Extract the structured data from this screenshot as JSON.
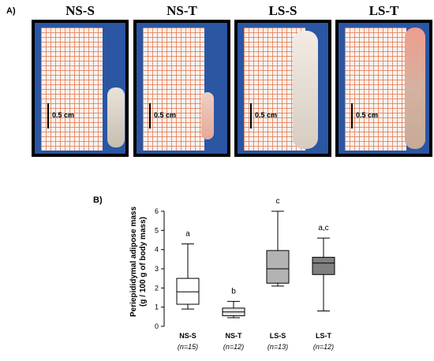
{
  "panel_a": {
    "label": "A)",
    "photos": [
      {
        "title": "NS-S",
        "scale": "0.5 cm"
      },
      {
        "title": "NS-T",
        "scale": "0.5 cm"
      },
      {
        "title": "LS-S",
        "scale": "0.5 cm"
      },
      {
        "title": "LS-T",
        "scale": "0.5 cm"
      }
    ]
  },
  "panel_b": {
    "label": "B)"
  },
  "chart_data": {
    "type": "boxplot",
    "ylabel_line1": "Periepididymal adipose mass",
    "ylabel_line2": "(g / 100 g of body mass)",
    "ylim": [
      0,
      6
    ],
    "yticks": [
      "0",
      "1",
      "2",
      "3",
      "4",
      "5",
      "6"
    ],
    "groups": [
      {
        "name": "NS-S",
        "n_text": "(n=15)",
        "min": 0.9,
        "q1": 1.15,
        "median": 1.8,
        "q3": 2.5,
        "max": 4.3,
        "letter": "a",
        "fill": "#ffffff"
      },
      {
        "name": "NS-T",
        "n_text": "(n=12)",
        "min": 0.45,
        "q1": 0.55,
        "median": 0.75,
        "q3": 0.95,
        "max": 1.3,
        "letter": "b",
        "fill": "#e6e6e6"
      },
      {
        "name": "LS-S",
        "n_text": "(n=13)",
        "min": 2.1,
        "q1": 2.25,
        "median": 3.0,
        "q3": 3.95,
        "max": 6.0,
        "letter": "c",
        "fill": "#b3b3b3"
      },
      {
        "name": "LS-T",
        "n_text": "(n=12)",
        "min": 0.8,
        "q1": 2.7,
        "median": 3.3,
        "q3": 3.6,
        "max": 4.6,
        "letter": "a,c",
        "fill": "#808080"
      }
    ]
  }
}
